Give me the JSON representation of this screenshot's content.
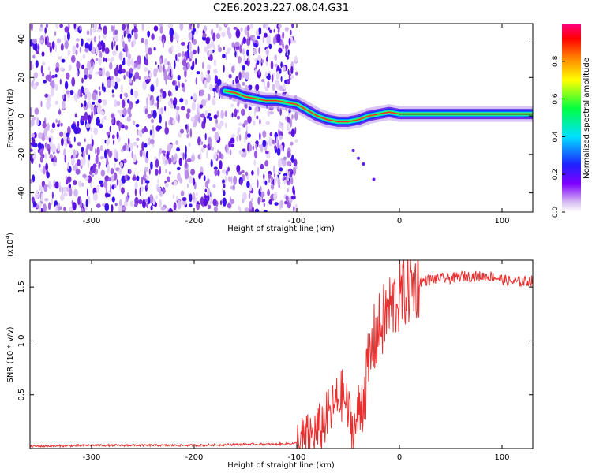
{
  "title": "C2E6.2023.227.08.04.G31",
  "chart_data": [
    {
      "type": "heatmap",
      "title": "C2E6.2023.227.08.04.G31",
      "xlabel": "Height of straight line (km)",
      "ylabel": "Frequency (Hz)",
      "xlim": [
        -360,
        130
      ],
      "ylim": [
        -50,
        48
      ],
      "x_ticks": [
        -300,
        -200,
        -100,
        0,
        100
      ],
      "y_ticks": [
        -40,
        -20,
        0,
        20,
        40
      ],
      "colorbar": {
        "label": "Normalized spectral amplitude",
        "range": [
          0,
          1
        ],
        "ticks": [
          "0.0",
          "0.2",
          "0.4",
          "0.6",
          "0.8"
        ],
        "colormap": "rainbow (purple-blue-cyan-green-yellow-red-magenta)"
      },
      "ridge": {
        "x": [
          -170,
          -160,
          -150,
          -140,
          -130,
          -120,
          -110,
          -100,
          -90,
          -80,
          -70,
          -60,
          -50,
          -40,
          -30,
          -20,
          -10,
          0,
          10,
          20,
          40,
          60,
          80,
          100,
          130
        ],
        "y": [
          13,
          12,
          10,
          9,
          8,
          8,
          7,
          6,
          3,
          0,
          -2,
          -3,
          -3,
          -2,
          0,
          1,
          2,
          1,
          1,
          1,
          1,
          1,
          1,
          1,
          1
        ]
      },
      "noise_region_x": [
        -360,
        -100
      ]
    },
    {
      "type": "line",
      "xlabel": "Height of straight line (km)",
      "ylabel": "SNR (10 * v/v)",
      "multiplier_label": "(x10",
      "multiplier_exp": "4",
      "multiplier_close": ")",
      "xlim": [
        -360,
        130
      ],
      "ylim": [
        0,
        1.75
      ],
      "x_ticks": [
        -300,
        -200,
        -100,
        0,
        100
      ],
      "y_ticks": [
        "0.5",
        "1.0",
        "1.5"
      ],
      "y_tick_values": [
        0.5,
        1.0,
        1.5
      ],
      "series": [
        {
          "color": "#e83030",
          "x": [
            -360,
            -300,
            -250,
            -200,
            -150,
            -120,
            -100,
            -90,
            -80,
            -70,
            -60,
            -55,
            -50,
            -45,
            -40,
            -35,
            -30,
            -25,
            -20,
            -15,
            -10,
            -5,
            0,
            5,
            10,
            20,
            30,
            40,
            50,
            60,
            70,
            80,
            90,
            100,
            110,
            120,
            130
          ],
          "y": [
            0.02,
            0.03,
            0.03,
            0.03,
            0.04,
            0.04,
            0.05,
            0.08,
            0.15,
            0.3,
            0.45,
            0.5,
            0.35,
            0.15,
            0.3,
            0.5,
            0.75,
            1.0,
            1.1,
            1.2,
            1.3,
            1.35,
            1.4,
            1.45,
            1.5,
            1.55,
            1.57,
            1.58,
            1.58,
            1.6,
            1.6,
            1.6,
            1.6,
            1.57,
            1.55,
            1.55,
            1.56
          ]
        }
      ]
    }
  ]
}
